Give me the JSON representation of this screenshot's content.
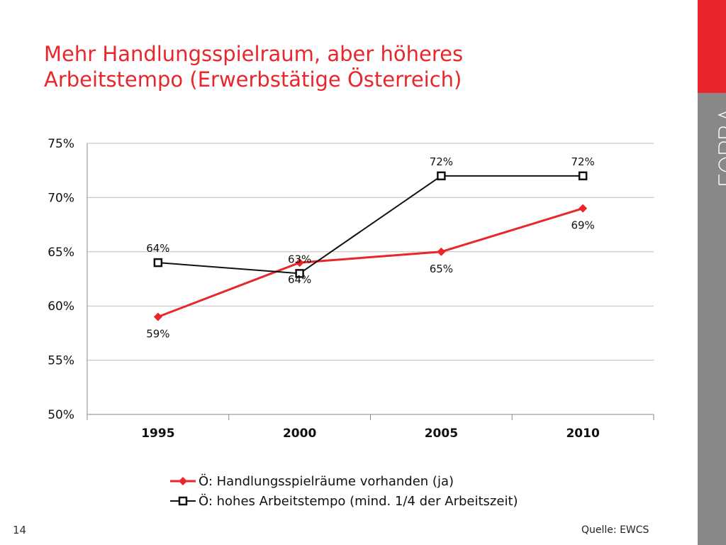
{
  "slide": {
    "title_line1": "Mehr Handlungsspielraum, aber höheres",
    "title_line2": "Arbeitstempo (Erwerbstätige Österreich)",
    "page_number": "14",
    "source": "Quelle: EWCS",
    "accent_color": "#e8262b",
    "sidebar_grey": "#888888"
  },
  "chart_data": {
    "type": "line",
    "categories": [
      "1995",
      "2000",
      "2005",
      "2010"
    ],
    "ylim": [
      0.5,
      0.75
    ],
    "yticks": [
      "50%",
      "55%",
      "60%",
      "65%",
      "70%",
      "75%"
    ],
    "ytick_values": [
      0.5,
      0.55,
      0.6,
      0.65,
      0.7,
      0.75
    ],
    "grid": true,
    "legend_position": "bottom",
    "series": [
      {
        "name": "Ö: Handlungsspielräume vorhanden (ja)",
        "values": [
          0.59,
          0.64,
          0.65,
          0.69
        ],
        "labels": [
          "59%",
          "64%",
          "65%",
          "69%"
        ],
        "label_side": [
          "below",
          "below",
          "below",
          "below"
        ],
        "color": "#e8262b",
        "marker": "diamond"
      },
      {
        "name": "Ö: hohes Arbeitstempo (mind. 1/4 der Arbeitszeit)",
        "values": [
          0.64,
          0.63,
          0.72,
          0.72
        ],
        "labels": [
          "64%",
          "63%",
          "72%",
          "72%"
        ],
        "label_side": [
          "above",
          "above",
          "above",
          "above"
        ],
        "color": "#111111",
        "marker": "square"
      }
    ]
  }
}
